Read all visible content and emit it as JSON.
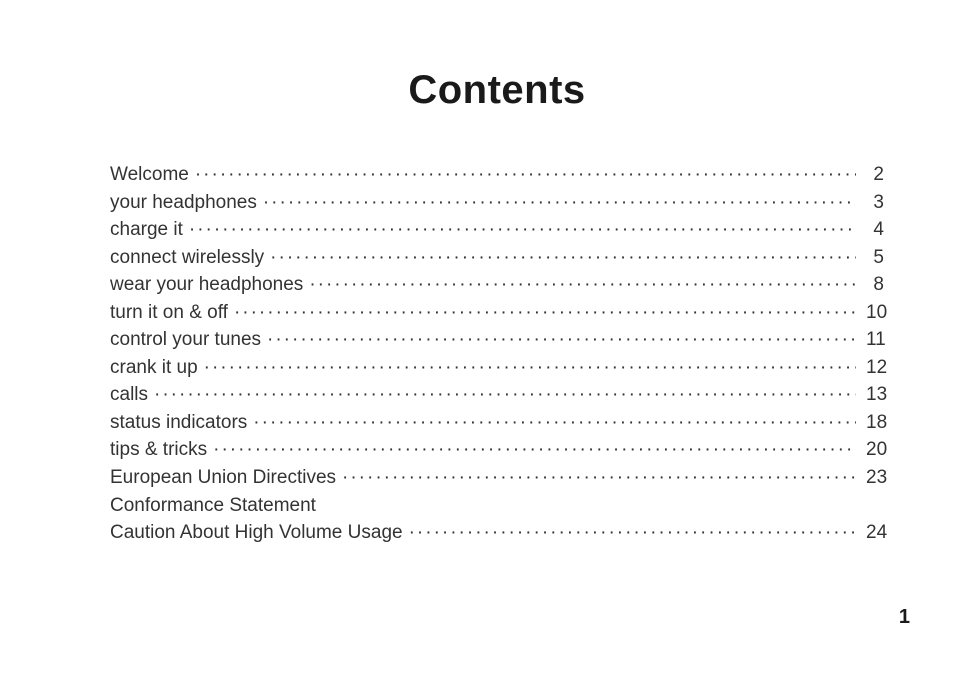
{
  "title": "Contents",
  "page_number": "1",
  "entries": [
    {
      "label": "Welcome",
      "page": "2"
    },
    {
      "label": "your headphones",
      "page": "3"
    },
    {
      "label": "charge it",
      "page": "4"
    },
    {
      "label": "connect wirelessly",
      "page": "5"
    },
    {
      "label": "wear your headphones",
      "page": "8"
    },
    {
      "label": "turn it on & off",
      "page": "10"
    },
    {
      "label": "control your tunes",
      "page": "11"
    },
    {
      "label": "crank it up",
      "page": "12"
    },
    {
      "label": "calls",
      "page": "13"
    },
    {
      "label": "status indicators",
      "page": "18"
    },
    {
      "label": "tips & tricks",
      "page": "20"
    },
    {
      "label": "European Union Directives",
      "sub": "Conformance Statement",
      "page": "23"
    },
    {
      "label": "Caution About High Volume Usage",
      "page": "24"
    }
  ],
  "colors": {
    "background": "#ffffff",
    "text": "#333333",
    "title": "#1a1a1a"
  }
}
